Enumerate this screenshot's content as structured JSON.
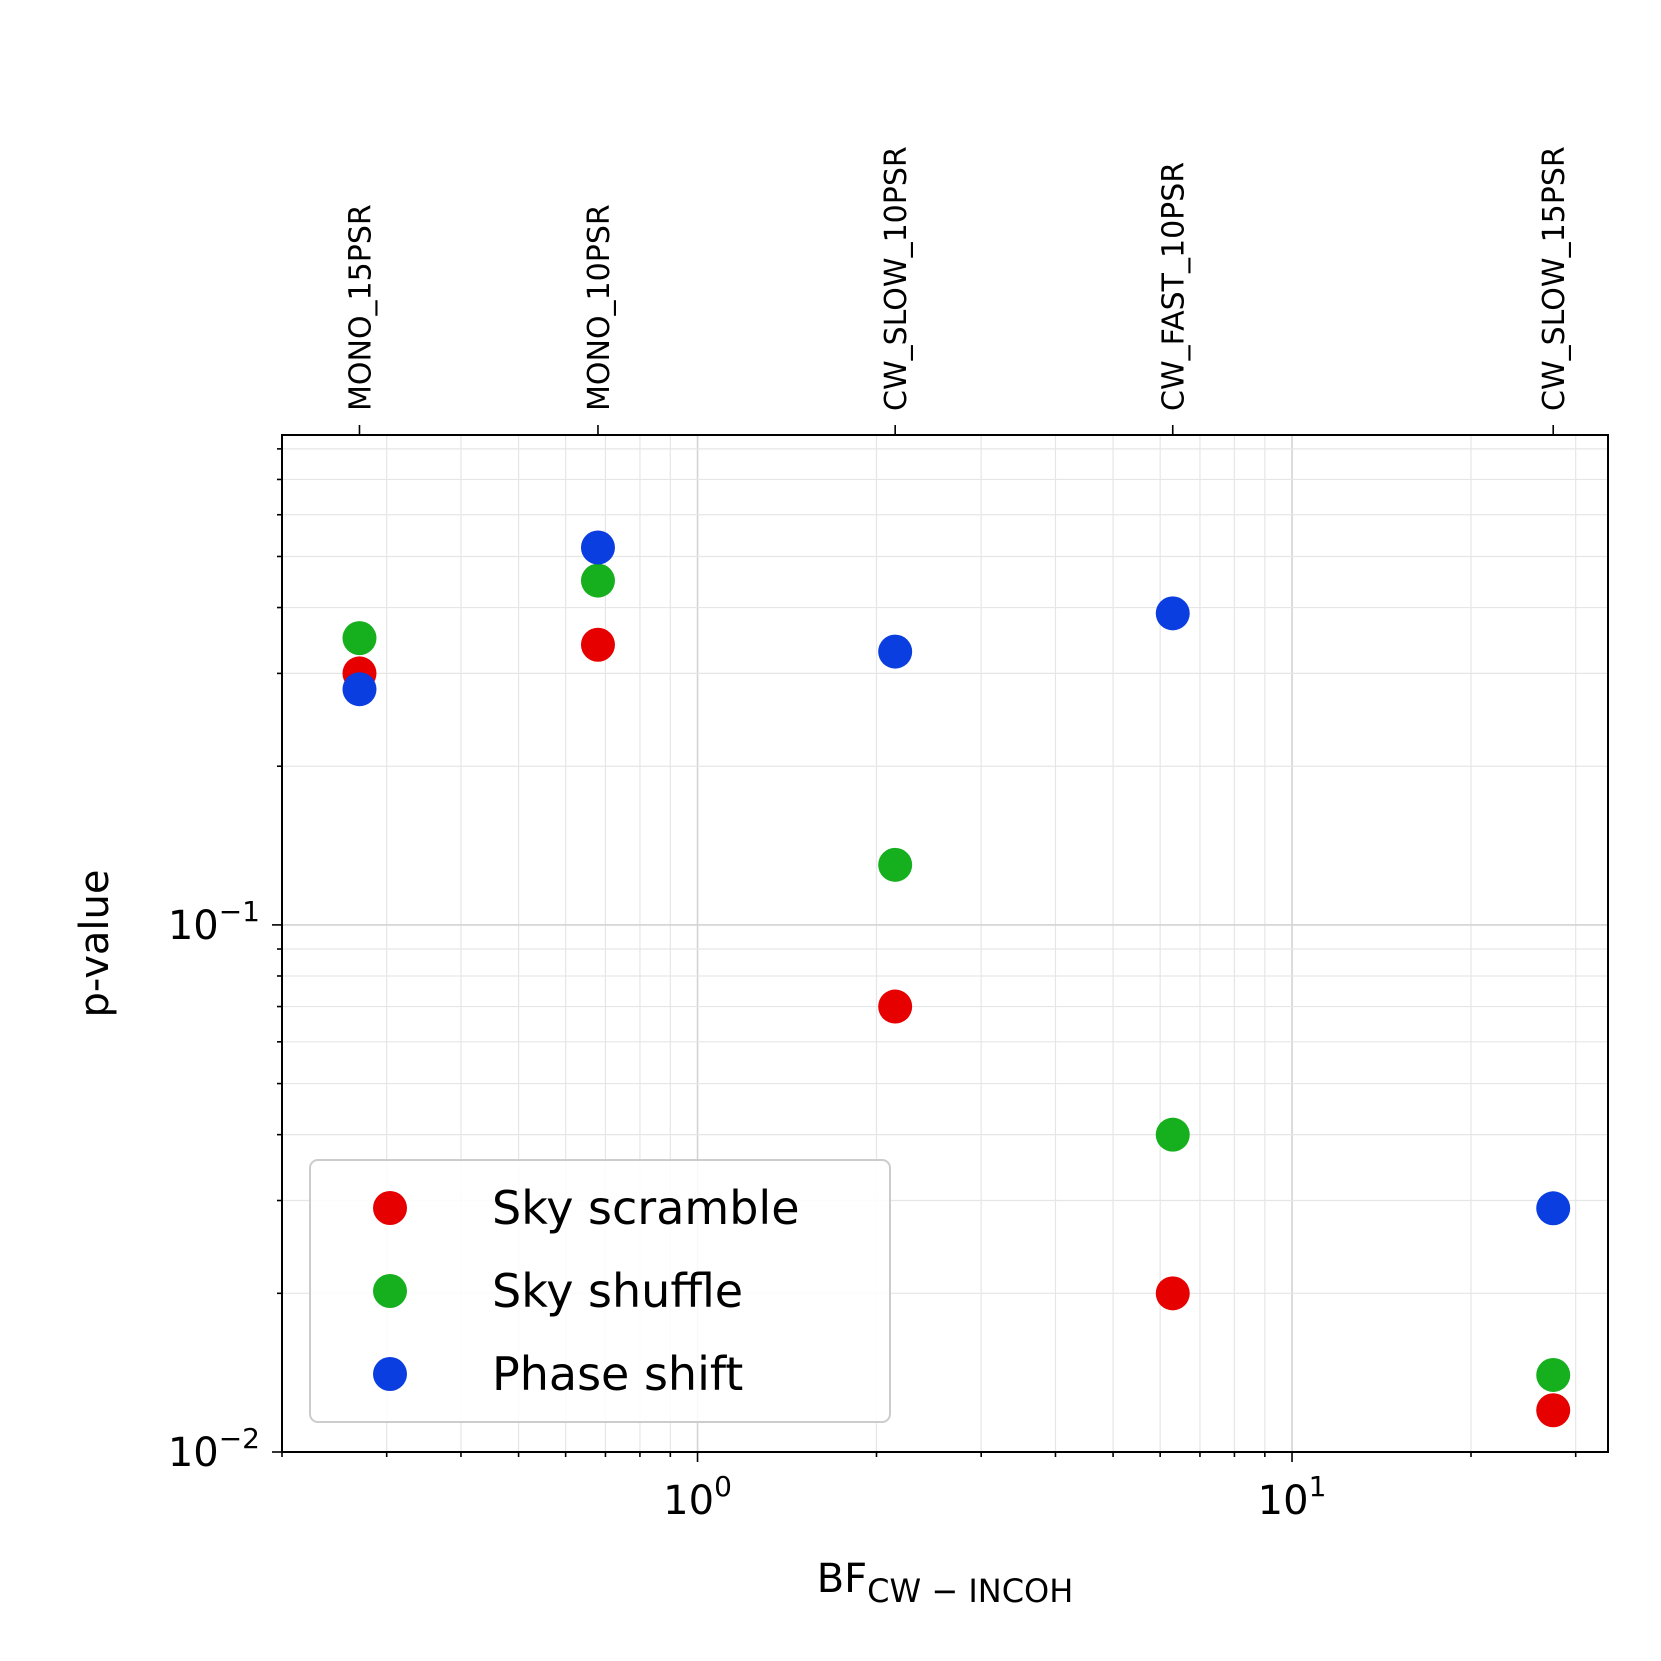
{
  "chart_data": {
    "type": "scatter",
    "xlabel": "BF",
    "xlabel_subscript": "CW − INCOH",
    "ylabel": "p-value",
    "xscale": "log",
    "yscale": "log",
    "xlim": [
      0.2,
      34
    ],
    "ylim": [
      0.01,
      0.85
    ],
    "grid": true,
    "legend_position": "lower-left",
    "x_ticks": [
      {
        "value": 1,
        "base": "10",
        "exp": "0"
      },
      {
        "value": 10,
        "base": "10",
        "exp": "1"
      }
    ],
    "y_ticks": [
      {
        "value": 0.1,
        "base": "10",
        "exp": "−1"
      },
      {
        "value": 0.01,
        "base": "10",
        "exp": "−2"
      }
    ],
    "top_axis": {
      "labels": [
        "MONO_15PSR",
        "MONO_10PSR",
        "CW_SLOW_10PSR",
        "CW_FAST_10PSR",
        "CW_SLOW_15PSR"
      ],
      "positions": [
        0.27,
        0.68,
        2.15,
        6.3,
        27.5
      ]
    },
    "series": [
      {
        "name": "Sky scramble",
        "color": "#e60000",
        "x": [
          0.27,
          0.68,
          2.15,
          6.3,
          27.5
        ],
        "y": [
          0.3,
          0.34,
          0.07,
          0.02,
          0.012
        ]
      },
      {
        "name": "Sky shuffle",
        "color": "#16b01f",
        "x": [
          0.27,
          0.68,
          2.15,
          6.3,
          27.5
        ],
        "y": [
          0.35,
          0.45,
          0.13,
          0.04,
          0.014
        ]
      },
      {
        "name": "Phase shift",
        "color": "#0a3ee0",
        "x": [
          0.27,
          0.68,
          2.15,
          6.3,
          27.5
        ],
        "y": [
          0.28,
          0.52,
          0.33,
          0.39,
          0.029
        ]
      }
    ]
  }
}
